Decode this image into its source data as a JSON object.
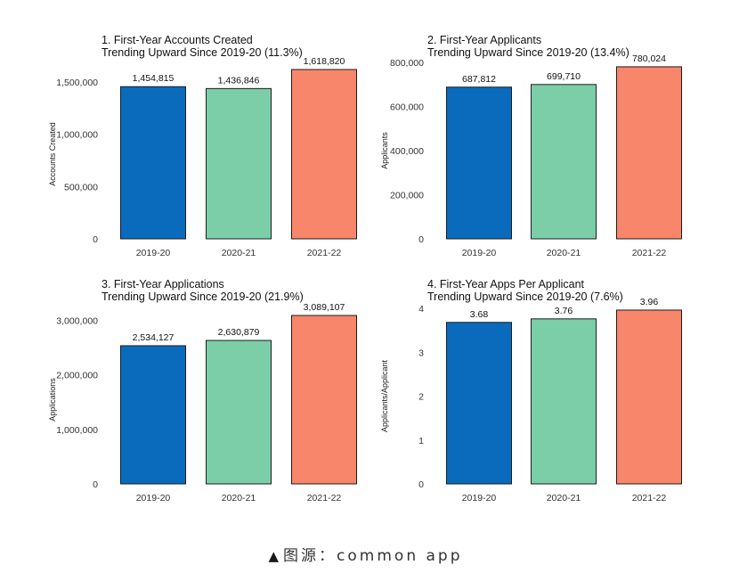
{
  "chart_data": [
    {
      "type": "bar",
      "title": "1. First-Year Accounts Created",
      "subtitle": "Trending Upward Since 2019-20 (11.3%)",
      "xlabel": "",
      "ylabel": "Accounts Created",
      "categories": [
        "2019-20",
        "2020-21",
        "2021-22"
      ],
      "values": [
        1454815,
        1436846,
        1618820
      ],
      "value_labels": [
        "1,454,815",
        "1,436,846",
        "1,618,820"
      ],
      "yticks": [
        0,
        500000,
        1000000,
        1500000
      ],
      "ytick_labels": [
        "0",
        "500,000",
        "1,000,000",
        "1,500,000"
      ],
      "ylim": [
        0,
        1618820
      ],
      "colors": [
        "#0a6bbd",
        "#7bcea8",
        "#f8866a"
      ],
      "grid": false
    },
    {
      "type": "bar",
      "title": "2. First-Year Applicants",
      "subtitle": "Trending Upward Since 2019-20 (13.4%)",
      "xlabel": "",
      "ylabel": "Applicants",
      "categories": [
        "2019-20",
        "2020-21",
        "2021-22"
      ],
      "values": [
        687812,
        699710,
        780024
      ],
      "value_labels": [
        "687,812",
        "699,710",
        "780,024"
      ],
      "yticks": [
        0,
        200000,
        400000,
        600000,
        800000
      ],
      "ytick_labels": [
        "0",
        "200,000",
        "400,000",
        "600,000",
        "800,000"
      ],
      "ylim": [
        0,
        800000
      ],
      "colors": [
        "#0a6bbd",
        "#7bcea8",
        "#f8866a"
      ],
      "grid": false
    },
    {
      "type": "bar",
      "title": "3. First-Year Applications",
      "subtitle": "Trending Upward Since 2019-20 (21.9%)",
      "xlabel": "",
      "ylabel": "Applications",
      "categories": [
        "2019-20",
        "2020-21",
        "2021-22"
      ],
      "values": [
        2534127,
        2630879,
        3089107
      ],
      "value_labels": [
        "2,534,127",
        "2,630,879",
        "3,089,107"
      ],
      "yticks": [
        0,
        1000000,
        2000000,
        3000000
      ],
      "ytick_labels": [
        "0",
        "1,000,000",
        "2,000,000",
        "3,000,000"
      ],
      "ylim": [
        0,
        3089107
      ],
      "colors": [
        "#0a6bbd",
        "#7bcea8",
        "#f8866a"
      ],
      "grid": false
    },
    {
      "type": "bar",
      "title": "4. First-Year Apps Per Applicant",
      "subtitle": "Trending Upward Since 2019-20 (7.6%)",
      "xlabel": "",
      "ylabel": "Applicants/Applicant",
      "categories": [
        "2019-20",
        "2020-21",
        "2021-22"
      ],
      "values": [
        3.68,
        3.76,
        3.96
      ],
      "value_labels": [
        "3.68",
        "3.76",
        "3.96"
      ],
      "yticks": [
        0,
        1,
        2,
        3,
        4
      ],
      "ytick_labels": [
        "0",
        "1",
        "2",
        "3",
        "4"
      ],
      "ylim": [
        0,
        4
      ],
      "colors": [
        "#0a6bbd",
        "#7bcea8",
        "#f8866a"
      ],
      "grid": false
    }
  ],
  "caption": {
    "marker": "▲",
    "text": "图源：common app"
  }
}
